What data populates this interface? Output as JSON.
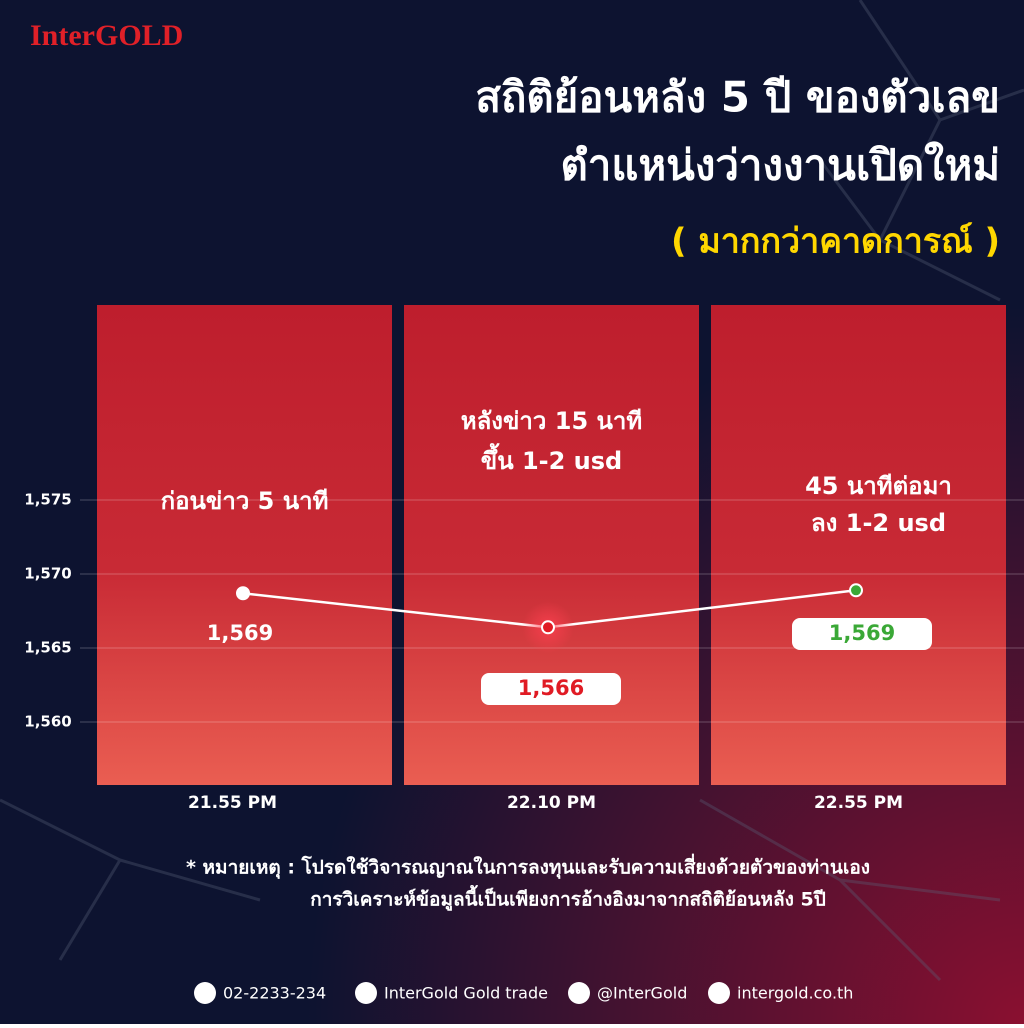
{
  "brand": "InterGOLD",
  "chart_data": {
    "type": "line",
    "title": [
      "สถิติย้อนหลัง 5 ปี ของตัวเลข",
      "ตำแหน่งว่างงานเปิดใหม่"
    ],
    "subtitle": "( มากกว่าคาดการณ์ )",
    "categories": [
      "21.55 PM",
      "22.10 PM",
      "22.55 PM"
    ],
    "annotations": [
      [
        "ก่อนข่าว 5 นาที"
      ],
      [
        "หลังข่าว 15 นาที",
        "ขึ้น 1-2 usd"
      ],
      [
        "45 นาทีต่อมา",
        "ลง 1-2 usd"
      ]
    ],
    "values": [
      1568.7,
      1566.4,
      1568.9
    ],
    "value_labels": [
      "1,569",
      "1,566",
      "1,569"
    ],
    "point_colors": [
      "#ffffff",
      "#e01b24",
      "#3aa836"
    ],
    "label_boxed": [
      false,
      true,
      true
    ],
    "color": "#ffffff",
    "ylim": [
      1556,
      1588
    ],
    "yticks": [
      {
        "value": 1560,
        "label": "1,560"
      },
      {
        "value": 1565,
        "label": "1,565"
      },
      {
        "value": 1570,
        "label": "1,570"
      },
      {
        "value": 1575,
        "label": "1,575"
      }
    ],
    "grid": true
  },
  "note": [
    "* หมายเหตุ : โปรดใช้วิจารณญาณในการลงทุนและรับความเสี่ยงด้วยตัวของท่านเอง",
    "การวิเคราะห์ข้อมูลนี้เป็นเพียงการอ้างอิงมาจากสถิติย้อนหลัง 5ปี"
  ],
  "contacts": [
    "02-2233-234",
    "InterGold Gold trade",
    "@InterGold",
    "intergold.co.th"
  ]
}
